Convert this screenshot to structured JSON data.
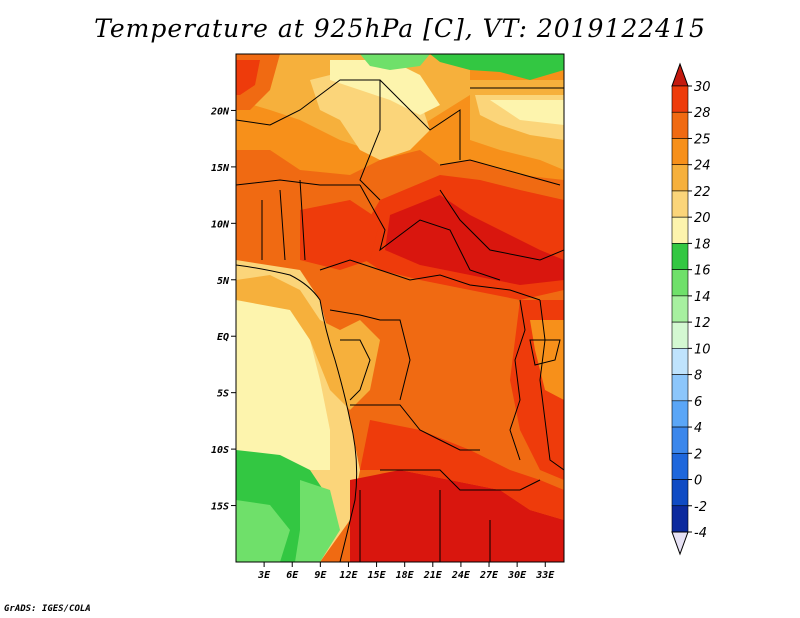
{
  "title": "Temperature at 925hPa [C], VT: 2019122415",
  "credit": "GrADS: IGES/COLA",
  "map": {
    "lon_range": [
      0,
      35
    ],
    "lat_range": [
      -20,
      25
    ],
    "lon_ticks": [
      "3E",
      "6E",
      "9E",
      "12E",
      "15E",
      "18E",
      "21E",
      "24E",
      "27E",
      "30E",
      "33E"
    ],
    "lat_ticks": [
      "20N",
      "15N",
      "10N",
      "5N",
      "EQ",
      "5S",
      "10S",
      "15S"
    ]
  },
  "colorbar": {
    "levels": [
      "30",
      "28",
      "25",
      "24",
      "22",
      "20",
      "18",
      "16",
      "14",
      "12",
      "10",
      "8",
      "6",
      "4",
      "2",
      "0",
      "-2",
      "-4"
    ],
    "colors": [
      "#d9160e",
      "#ee3b0b",
      "#f06a12",
      "#f7901a",
      "#f6b03c",
      "#fbd57a",
      "#fdf4ad",
      "#33c742",
      "#6fe06a",
      "#a7f0a0",
      "#d4f8d2",
      "#bfe3fd",
      "#8cc6fb",
      "#5aa6f7",
      "#3b87ec",
      "#1e67dc",
      "#0f4bc4",
      "#0c2a9e",
      "#0a1366"
    ],
    "top_arrow_color": "#c41a0f",
    "bottom_arrow_color": "#e6e1f4"
  }
}
